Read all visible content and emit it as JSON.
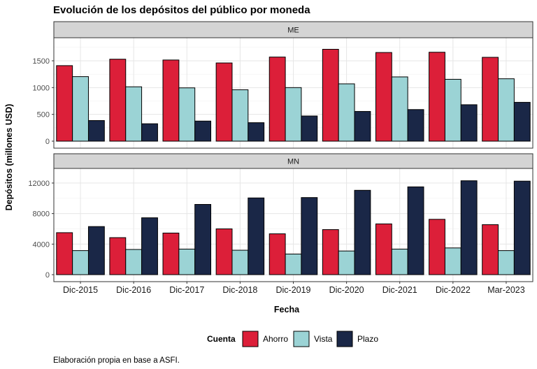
{
  "chart_data": {
    "type": "bar",
    "title": "Evolución de los depósitos del público por moneda",
    "xlabel": "Fecha",
    "ylabel": "Depósitos (millones USD)",
    "caption": "Elaboración propia en base a ASFI.",
    "legend": {
      "title": "Cuenta",
      "placement": "bottom"
    },
    "categories": [
      "Dic-2015",
      "Dic-2016",
      "Dic-2017",
      "Dic-2018",
      "Dic-2019",
      "Dic-2020",
      "Dic-2021",
      "Dic-2022",
      "Mar-2023"
    ],
    "series_colors": {
      "Ahorro": "#dc1f39",
      "Vista": "#9bd3d5",
      "Plazo": "#1a2747"
    },
    "grid": true,
    "facets": [
      {
        "label": "ME",
        "ylim": [
          0,
          1800
        ],
        "yticks": [
          0,
          500,
          1000,
          1500
        ],
        "ytick_labels": [
          "0",
          "500",
          "1000",
          "1500"
        ],
        "series": [
          {
            "name": "Ahorro",
            "values": [
              1410,
              1530,
              1515,
              1460,
              1570,
              1715,
              1655,
              1660,
              1565
            ]
          },
          {
            "name": "Vista",
            "values": [
              1205,
              1015,
              995,
              960,
              1000,
              1070,
              1200,
              1155,
              1165
            ]
          },
          {
            "name": "Plazo",
            "values": [
              385,
              325,
              375,
              345,
              470,
              555,
              590,
              680,
              725
            ]
          }
        ]
      },
      {
        "label": "MN",
        "ylim": [
          0,
          13000
        ],
        "yticks": [
          0,
          4000,
          8000,
          12000
        ],
        "ytick_labels": [
          "0",
          "4000",
          "8000",
          "12000"
        ],
        "series": [
          {
            "name": "Ahorro",
            "values": [
              5500,
              4850,
              5450,
              6000,
              5350,
              5900,
              6650,
              7250,
              6550
            ]
          },
          {
            "name": "Vista",
            "values": [
              3150,
              3300,
              3350,
              3200,
              2700,
              3100,
              3350,
              3500,
              3150
            ]
          },
          {
            "name": "Plazo",
            "values": [
              6300,
              7450,
              9200,
              10050,
              10100,
              11050,
              11500,
              12300,
              12250
            ]
          }
        ]
      }
    ]
  }
}
